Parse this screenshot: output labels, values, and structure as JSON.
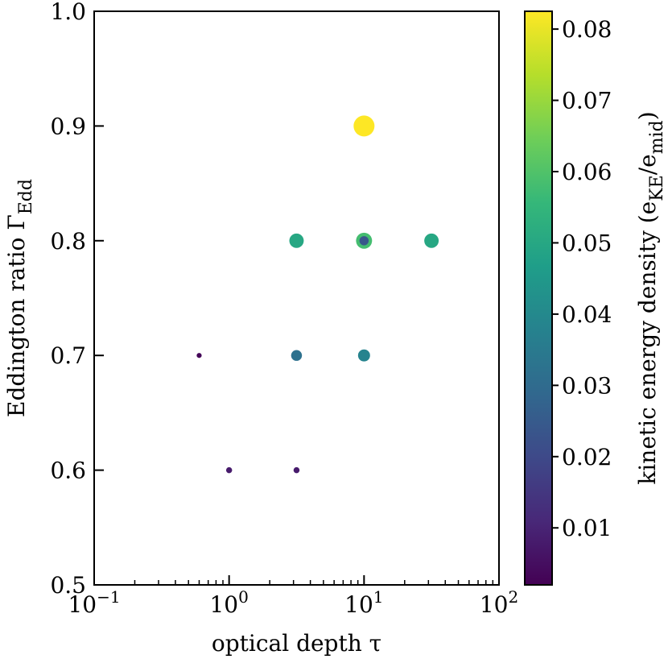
{
  "chart_data": {
    "type": "scatter",
    "xlabel": "optical depth τ",
    "ylabel_main": "Eddington ratio Γ",
    "ylabel_sub": "Edd",
    "xscale": "log",
    "xlim": [
      0.1,
      100
    ],
    "ylim": [
      0.5,
      1.0
    ],
    "x_tick_values": [
      0.1,
      1,
      10,
      100
    ],
    "x_tick_labels": [
      {
        "base": "10",
        "exp": "−1"
      },
      {
        "base": "10",
        "exp": "0"
      },
      {
        "base": "10",
        "exp": "1"
      },
      {
        "base": "10",
        "exp": "2"
      }
    ],
    "y_ticks": [
      0.5,
      0.6,
      0.7,
      0.8,
      0.9,
      1.0
    ],
    "y_tick_labels": [
      "0.5",
      "0.6",
      "0.7",
      "0.8",
      "0.9",
      "1.0"
    ],
    "points": [
      {
        "x": 0.6,
        "y": 0.7,
        "value": 0.003
      },
      {
        "x": 1.0,
        "y": 0.6,
        "value": 0.008
      },
      {
        "x": 3.16,
        "y": 0.6,
        "value": 0.008
      },
      {
        "x": 3.16,
        "y": 0.7,
        "value": 0.032
      },
      {
        "x": 3.16,
        "y": 0.8,
        "value": 0.05
      },
      {
        "x": 10.0,
        "y": 0.7,
        "value": 0.038
      },
      {
        "x": 10.0,
        "y": 0.8,
        "value": 0.058
      },
      {
        "x": 10.0,
        "y": 0.8,
        "value": 0.024
      },
      {
        "x": 10.0,
        "y": 0.9,
        "value": 0.083
      },
      {
        "x": 31.6,
        "y": 0.8,
        "value": 0.05
      }
    ],
    "colorbar": {
      "label_main": "kinetic energy density (e",
      "label_sub1": "KE",
      "label_mid": "/e",
      "label_sub2": "mid",
      "label_end": ")",
      "vmin": 0.002,
      "vmax": 0.0825,
      "ticks": [
        0.01,
        0.02,
        0.03,
        0.04,
        0.05,
        0.06,
        0.07,
        0.08
      ],
      "tick_labels": [
        "0.01",
        "0.02",
        "0.03",
        "0.04",
        "0.05",
        "0.06",
        "0.07",
        "0.08"
      ],
      "colormap": "viridis",
      "colormap_stops": [
        "#440154",
        "#482878",
        "#3e4989",
        "#31688e",
        "#26828e",
        "#1f9e89",
        "#35b779",
        "#6ece58",
        "#b5de2b",
        "#fde725"
      ]
    }
  }
}
